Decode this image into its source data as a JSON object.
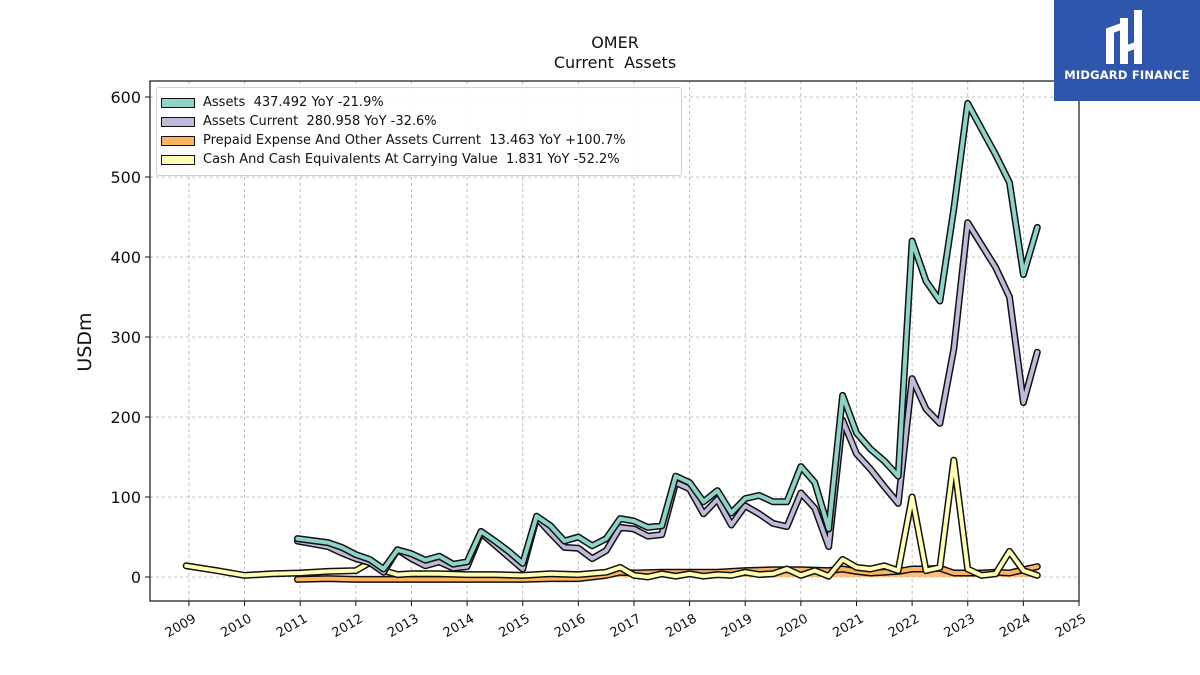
{
  "brand": {
    "name": "MIDGARD FINANCE",
    "color": "#2f56ad"
  },
  "chart_data": {
    "type": "line",
    "title": "OMER",
    "subtitle": "Current  Assets",
    "ylabel": "USDm",
    "xlabel": "",
    "ylim": [
      -30,
      620
    ],
    "xlim": [
      2008.3,
      2025.0
    ],
    "yticks": [
      0,
      100,
      200,
      300,
      400,
      500,
      600
    ],
    "xticks": [
      "2009",
      "2010",
      "2011",
      "2012",
      "2013",
      "2014",
      "2015",
      "2016",
      "2017",
      "2018",
      "2019",
      "2020",
      "2021",
      "2022",
      "2023",
      "2024",
      "2025"
    ],
    "grid": true,
    "legend_position": "top-left",
    "series": [
      {
        "name": "Assets  437.492 YoY -21.9%",
        "color": "#8dd3c7",
        "points": [
          [
            2010.95,
            48
          ],
          [
            2011.5,
            43
          ],
          [
            2011.75,
            37
          ],
          [
            2012.0,
            28
          ],
          [
            2012.25,
            22
          ],
          [
            2012.5,
            10
          ],
          [
            2012.75,
            34
          ],
          [
            2013.0,
            29
          ],
          [
            2013.25,
            21
          ],
          [
            2013.5,
            26
          ],
          [
            2013.75,
            16
          ],
          [
            2014.0,
            19
          ],
          [
            2014.25,
            57
          ],
          [
            2014.5,
            45
          ],
          [
            2014.75,
            32
          ],
          [
            2015.0,
            17
          ],
          [
            2015.25,
            76
          ],
          [
            2015.5,
            64
          ],
          [
            2015.75,
            45
          ],
          [
            2016.0,
            50
          ],
          [
            2016.25,
            39
          ],
          [
            2016.5,
            48
          ],
          [
            2016.75,
            73
          ],
          [
            2017.0,
            70
          ],
          [
            2017.25,
            62
          ],
          [
            2017.5,
            64
          ],
          [
            2017.75,
            126
          ],
          [
            2018.0,
            118
          ],
          [
            2018.25,
            94
          ],
          [
            2018.5,
            108
          ],
          [
            2018.75,
            80
          ],
          [
            2019.0,
            98
          ],
          [
            2019.25,
            102
          ],
          [
            2019.5,
            94
          ],
          [
            2019.75,
            94
          ],
          [
            2020.0,
            138
          ],
          [
            2020.25,
            118
          ],
          [
            2020.5,
            60
          ],
          [
            2020.75,
            227
          ],
          [
            2021.0,
            180
          ],
          [
            2021.25,
            160
          ],
          [
            2021.5,
            145
          ],
          [
            2021.75,
            126
          ],
          [
            2022.0,
            420
          ],
          [
            2022.25,
            370
          ],
          [
            2022.5,
            345
          ],
          [
            2022.75,
            460
          ],
          [
            2023.0,
            592
          ],
          [
            2023.25,
            560
          ],
          [
            2023.5,
            528
          ],
          [
            2023.75,
            493
          ],
          [
            2024.0,
            378
          ],
          [
            2024.25,
            437
          ]
        ]
      },
      {
        "name": "Assets Current  280.958 YoY -32.6%",
        "color": "#bebada",
        "points": [
          [
            2010.95,
            45
          ],
          [
            2011.5,
            38
          ],
          [
            2011.75,
            30
          ],
          [
            2012.0,
            23
          ],
          [
            2012.25,
            18
          ],
          [
            2012.5,
            6
          ],
          [
            2012.75,
            34
          ],
          [
            2013.0,
            23
          ],
          [
            2013.25,
            14
          ],
          [
            2013.5,
            19
          ],
          [
            2013.75,
            11
          ],
          [
            2014.0,
            13
          ],
          [
            2014.25,
            55
          ],
          [
            2014.5,
            40
          ],
          [
            2014.75,
            25
          ],
          [
            2015.0,
            10
          ],
          [
            2015.25,
            74
          ],
          [
            2015.5,
            55
          ],
          [
            2015.75,
            37
          ],
          [
            2016.0,
            36
          ],
          [
            2016.25,
            23
          ],
          [
            2016.5,
            33
          ],
          [
            2016.75,
            62
          ],
          [
            2017.0,
            60
          ],
          [
            2017.25,
            51
          ],
          [
            2017.5,
            53
          ],
          [
            2017.75,
            118
          ],
          [
            2018.0,
            110
          ],
          [
            2018.25,
            79
          ],
          [
            2018.5,
            97
          ],
          [
            2018.75,
            65
          ],
          [
            2019.0,
            89
          ],
          [
            2019.25,
            79
          ],
          [
            2019.5,
            67
          ],
          [
            2019.75,
            63
          ],
          [
            2020.0,
            105
          ],
          [
            2020.25,
            86
          ],
          [
            2020.5,
            38
          ],
          [
            2020.75,
            196
          ],
          [
            2021.0,
            154
          ],
          [
            2021.25,
            135
          ],
          [
            2021.5,
            113
          ],
          [
            2021.75,
            92
          ],
          [
            2022.0,
            248
          ],
          [
            2022.25,
            210
          ],
          [
            2022.5,
            192
          ],
          [
            2022.75,
            285
          ],
          [
            2023.0,
            443
          ],
          [
            2023.25,
            415
          ],
          [
            2023.5,
            387
          ],
          [
            2023.75,
            350
          ],
          [
            2024.0,
            218
          ],
          [
            2024.25,
            281
          ]
        ]
      },
      {
        "name": "Prepaid Expense And Other Assets Current  13.463 YoY +100.7%",
        "color": "#fdb462",
        "points": [
          [
            2010.95,
            -3
          ],
          [
            2011.5,
            -2
          ],
          [
            2012.0,
            -3
          ],
          [
            2012.5,
            -3
          ],
          [
            2013.0,
            -3
          ],
          [
            2013.5,
            -3
          ],
          [
            2014.0,
            -3
          ],
          [
            2014.5,
            -3
          ],
          [
            2015.0,
            -3
          ],
          [
            2015.5,
            -2
          ],
          [
            2016.0,
            -2
          ],
          [
            2016.5,
            2
          ],
          [
            2016.75,
            6
          ],
          [
            2017.0,
            5
          ],
          [
            2017.5,
            6
          ],
          [
            2018.0,
            6
          ],
          [
            2018.5,
            6
          ],
          [
            2019.0,
            8
          ],
          [
            2019.5,
            9
          ],
          [
            2020.0,
            9
          ],
          [
            2020.5,
            8
          ],
          [
            2020.75,
            10
          ],
          [
            2021.0,
            7
          ],
          [
            2021.25,
            5
          ],
          [
            2021.5,
            6
          ],
          [
            2021.75,
            7
          ],
          [
            2022.0,
            10
          ],
          [
            2022.25,
            10
          ],
          [
            2022.5,
            11
          ],
          [
            2022.75,
            5
          ],
          [
            2023.0,
            5
          ],
          [
            2023.25,
            5
          ],
          [
            2023.5,
            6
          ],
          [
            2023.75,
            5
          ],
          [
            2024.0,
            9
          ],
          [
            2024.25,
            13
          ]
        ]
      },
      {
        "name": "Cash And Cash Equivalents At Carrying Value  1.831 YoY -52.2%",
        "color": "#ffffb3",
        "points": [
          [
            2008.95,
            14
          ],
          [
            2009.5,
            8
          ],
          [
            2010.0,
            2
          ],
          [
            2010.5,
            4
          ],
          [
            2011.0,
            5
          ],
          [
            2011.5,
            7
          ],
          [
            2012.0,
            8
          ],
          [
            2012.25,
            18
          ],
          [
            2012.5,
            8
          ],
          [
            2012.75,
            3
          ],
          [
            2013.0,
            4
          ],
          [
            2013.5,
            4
          ],
          [
            2014.0,
            3
          ],
          [
            2014.5,
            3
          ],
          [
            2015.0,
            2
          ],
          [
            2015.5,
            4
          ],
          [
            2016.0,
            3
          ],
          [
            2016.5,
            6
          ],
          [
            2016.75,
            12
          ],
          [
            2017.0,
            2
          ],
          [
            2017.25,
            0
          ],
          [
            2017.5,
            4
          ],
          [
            2017.75,
            1
          ],
          [
            2018.0,
            4
          ],
          [
            2018.25,
            1
          ],
          [
            2018.5,
            3
          ],
          [
            2018.75,
            2
          ],
          [
            2019.0,
            6
          ],
          [
            2019.25,
            3
          ],
          [
            2019.5,
            4
          ],
          [
            2019.75,
            10
          ],
          [
            2020.0,
            2
          ],
          [
            2020.25,
            8
          ],
          [
            2020.5,
            1
          ],
          [
            2020.75,
            22
          ],
          [
            2021.0,
            12
          ],
          [
            2021.25,
            10
          ],
          [
            2021.5,
            14
          ],
          [
            2021.75,
            8
          ],
          [
            2022.0,
            100
          ],
          [
            2022.25,
            8
          ],
          [
            2022.5,
            12
          ],
          [
            2022.75,
            146
          ],
          [
            2023.0,
            10
          ],
          [
            2023.25,
            2
          ],
          [
            2023.5,
            4
          ],
          [
            2023.75,
            32
          ],
          [
            2024.0,
            8
          ],
          [
            2024.25,
            2
          ]
        ]
      }
    ]
  }
}
